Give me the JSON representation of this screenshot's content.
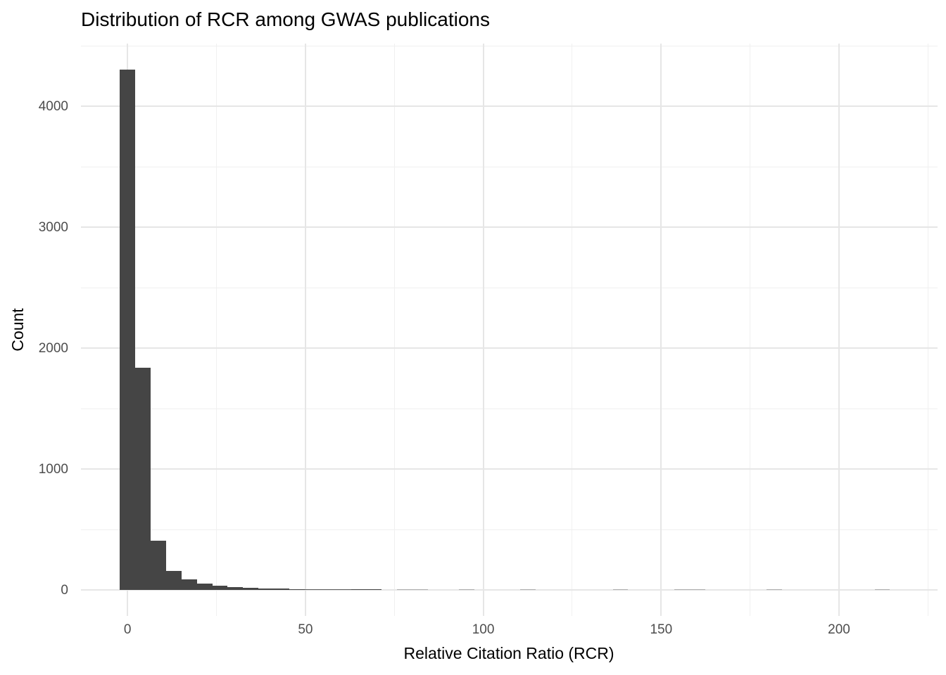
{
  "chart_data": {
    "type": "bar",
    "subtype": "histogram",
    "title": "Distribution of RCR among GWAS publications",
    "xlabel": "Relative Citation Ratio (RCR)",
    "ylabel": "Count",
    "x_ticks": [
      0,
      50,
      100,
      150,
      200
    ],
    "x_minor_ticks": [
      25,
      75,
      125,
      175,
      225
    ],
    "y_ticks": [
      0,
      1000,
      2000,
      3000,
      4000
    ],
    "y_minor_ticks": [
      500,
      1500,
      2500,
      3500,
      4500
    ],
    "xlim": [
      -13.1,
      227.7
    ],
    "ylim": [
      -215,
      4518
    ],
    "grid": "on",
    "legend": "none",
    "bin_width": 4.33,
    "first_bin_center": 0,
    "counts": [
      4300,
      1840,
      405,
      160,
      85,
      52,
      35,
      23,
      18,
      13,
      13,
      8,
      5,
      5,
      5,
      6,
      6,
      0,
      2,
      2,
      0,
      0,
      2,
      0,
      0,
      0,
      2,
      0,
      0,
      0,
      0,
      0,
      2,
      0,
      0,
      0,
      2,
      2,
      0,
      0,
      0,
      0,
      2,
      0,
      0,
      0,
      0,
      0,
      0,
      2
    ],
    "colors": {
      "bar_fill": "#454545",
      "major_grid": "#e6e6e6",
      "minor_grid": "#f0f0f0",
      "tick_label": "#4d4d4d",
      "title_text": "#000000",
      "background": "#ffffff"
    }
  }
}
